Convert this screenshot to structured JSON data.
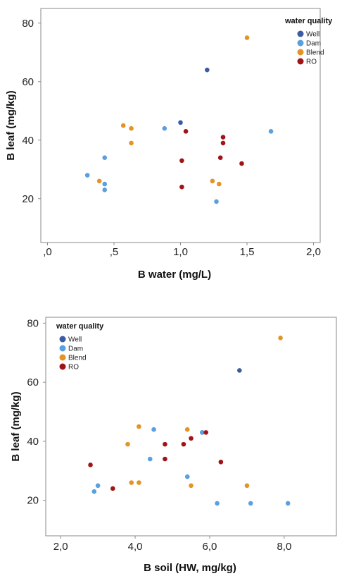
{
  "chart_data": [
    {
      "type": "scatter",
      "title": "",
      "xlabel": "B water (mg/L)",
      "ylabel": "B leaf (mg/kg)",
      "xlim": [
        -0.05,
        2.05
      ],
      "ylim": [
        5,
        85
      ],
      "xticks": [
        0,
        0.5,
        1.0,
        1.5,
        2.0
      ],
      "xtick_labels": [
        ",0",
        ",5",
        "1,0",
        "1,5",
        "2,0"
      ],
      "yticks": [
        20,
        40,
        60,
        80
      ],
      "ytick_labels": [
        "20",
        "40",
        "60",
        "80"
      ],
      "grid": false,
      "legend": {
        "title": "water quality",
        "position": "top-right"
      },
      "series": [
        {
          "name": "Well",
          "color": "#3b5ba5",
          "points": [
            [
              1.2,
              64
            ],
            [
              1.0,
              46
            ]
          ]
        },
        {
          "name": "Dam",
          "color": "#5a9fe0",
          "points": [
            [
              0.88,
              44
            ],
            [
              1.68,
              43
            ],
            [
              0.43,
              34
            ],
            [
              0.3,
              28
            ],
            [
              0.43,
              25
            ],
            [
              0.43,
              23
            ],
            [
              1.27,
              19
            ]
          ]
        },
        {
          "name": "Blend",
          "color": "#e39424",
          "points": [
            [
              1.5,
              75
            ],
            [
              0.57,
              45
            ],
            [
              0.63,
              44
            ],
            [
              0.63,
              39
            ],
            [
              0.39,
              26
            ],
            [
              1.24,
              26
            ],
            [
              1.29,
              25
            ]
          ]
        },
        {
          "name": "RO",
          "color": "#a01418",
          "points": [
            [
              1.04,
              43
            ],
            [
              1.32,
              41
            ],
            [
              1.32,
              39
            ],
            [
              1.3,
              34
            ],
            [
              1.01,
              33
            ],
            [
              1.46,
              32
            ],
            [
              1.01,
              24
            ]
          ]
        }
      ]
    },
    {
      "type": "scatter",
      "title": "",
      "xlabel": "B soil (HW, mg/kg)",
      "ylabel": "B leaf (mg/kg)",
      "xlim": [
        1.6,
        9.4
      ],
      "ylim": [
        8,
        82
      ],
      "xticks": [
        2,
        4,
        6,
        8
      ],
      "xtick_labels": [
        "2,0",
        "4,0",
        "6,0",
        "8,0"
      ],
      "yticks": [
        20,
        40,
        60,
        80
      ],
      "ytick_labels": [
        "20",
        "40",
        "60",
        "80"
      ],
      "grid": false,
      "legend": {
        "title": "water quality",
        "position": "top-left"
      },
      "series": [
        {
          "name": "Well",
          "color": "#3b5ba5",
          "points": [
            [
              6.8,
              64
            ],
            [
              5.8,
              43
            ]
          ]
        },
        {
          "name": "Dam",
          "color": "#5a9fe0",
          "points": [
            [
              4.5,
              44
            ],
            [
              5.8,
              43
            ],
            [
              4.4,
              34
            ],
            [
              5.4,
              28
            ],
            [
              3.0,
              25
            ],
            [
              2.9,
              23
            ],
            [
              6.2,
              19
            ],
            [
              7.1,
              19
            ],
            [
              8.1,
              19
            ]
          ]
        },
        {
          "name": "Blend",
          "color": "#e39424",
          "points": [
            [
              7.9,
              75
            ],
            [
              4.1,
              45
            ],
            [
              5.4,
              44
            ],
            [
              3.8,
              39
            ],
            [
              3.9,
              26
            ],
            [
              4.1,
              26
            ],
            [
              5.5,
              25
            ],
            [
              7.0,
              25
            ]
          ]
        },
        {
          "name": "RO",
          "color": "#a01418",
          "points": [
            [
              5.9,
              43
            ],
            [
              5.5,
              41
            ],
            [
              4.8,
              39
            ],
            [
              5.3,
              39
            ],
            [
              4.8,
              34
            ],
            [
              6.3,
              33
            ],
            [
              2.8,
              32
            ],
            [
              3.4,
              24
            ]
          ]
        }
      ]
    }
  ]
}
